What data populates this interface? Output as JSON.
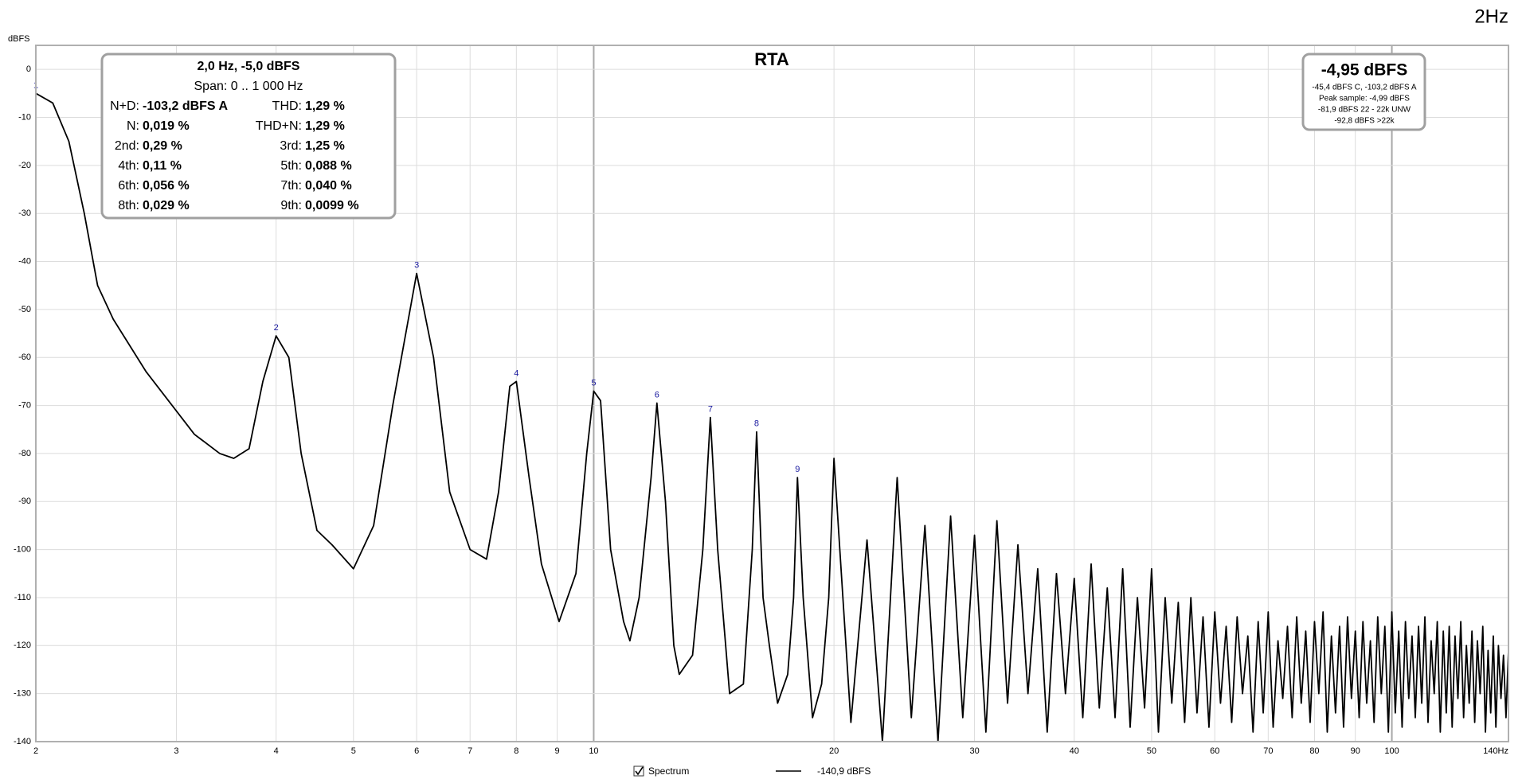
{
  "chart_data": {
    "type": "line",
    "title": "RTA",
    "y_label": "dBFS",
    "corner_label": "2Hz",
    "x_scale": "log",
    "grid": true,
    "xlim": [
      2,
      140
    ],
    "ylim": [
      -140,
      5
    ],
    "xticks": [
      2,
      3,
      4,
      5,
      6,
      7,
      8,
      9,
      10,
      20,
      30,
      40,
      50,
      60,
      70,
      80,
      90,
      100,
      {
        "value": 140,
        "label": "140Hz"
      }
    ],
    "yticks": [
      0,
      -10,
      -20,
      -30,
      -40,
      -50,
      -60,
      -70,
      -80,
      -90,
      -100,
      -110,
      -120,
      -130,
      -140
    ],
    "x": [
      2,
      2.1,
      2.2,
      2.3,
      2.39,
      2.5,
      2.75,
      3.16,
      3.4,
      3.54,
      3.7,
      3.85,
      4,
      4.15,
      4.3,
      4.5,
      4.7,
      5,
      5.3,
      5.6,
      6,
      6.3,
      6.6,
      7,
      7.34,
      7.6,
      7.85,
      8,
      8.3,
      8.6,
      9.05,
      9.5,
      9.8,
      10,
      10.2,
      10.5,
      10.9,
      11.1,
      11.4,
      11.8,
      12,
      12.3,
      12.6,
      12.8,
      13.3,
      13.7,
      14,
      14.3,
      14.6,
      14.8,
      15.4,
      15.8,
      16,
      16.3,
      16.6,
      17,
      17.5,
      17.8,
      18,
      18.3,
      18.8,
      19.3,
      19.7,
      20,
      21,
      22,
      23,
      24,
      25,
      26,
      27,
      28,
      29,
      30,
      31,
      32,
      33,
      34,
      35,
      36,
      37,
      38,
      39,
      40,
      41,
      42,
      43,
      44,
      45,
      46,
      47,
      48,
      49,
      50,
      51,
      52,
      53,
      54,
      55,
      56,
      57,
      58,
      59,
      60,
      61,
      62,
      63,
      64,
      65,
      66,
      67,
      68,
      69,
      70,
      71,
      72,
      73,
      74,
      75,
      76,
      77,
      78,
      79,
      80,
      81,
      82,
      83,
      84,
      85,
      86,
      87,
      88,
      89,
      90,
      91,
      92,
      93,
      94,
      95,
      96,
      97,
      98,
      99,
      100,
      101,
      102,
      103,
      104,
      105,
      106,
      107,
      108,
      109,
      110,
      111,
      112,
      113,
      114,
      115,
      116,
      117,
      118,
      119,
      120,
      121,
      122,
      123,
      124,
      125,
      126,
      127,
      128,
      129,
      130,
      131,
      132,
      133,
      134,
      135,
      136,
      137,
      138,
      139,
      140
    ],
    "series": [
      {
        "name": "Spectrum",
        "color": "#000000",
        "values": [
          -5,
          -7,
          -15,
          -30,
          -45,
          -52,
          -63,
          -76,
          -80,
          -81,
          -79,
          -65,
          -55.5,
          -60,
          -80,
          -96,
          -99,
          -104,
          -95,
          -70,
          -42.5,
          -60,
          -88,
          -100,
          -102,
          -88,
          -66,
          -65,
          -85,
          -103,
          -115,
          -105,
          -80,
          -67,
          -69,
          -100,
          -115,
          -119,
          -110,
          -85,
          -69.5,
          -90,
          -120,
          -126,
          -122,
          -100,
          -72.5,
          -100,
          -118,
          -130,
          -128,
          -100,
          -75.5,
          -110,
          -120,
          -132,
          -126,
          -110,
          -85,
          -110,
          -135,
          -128,
          -110,
          -81,
          -136,
          -98,
          -140,
          -85,
          -135,
          -95,
          -140,
          -93,
          -135,
          -97,
          -138,
          -94,
          -132,
          -99,
          -130,
          -104,
          -138,
          -105,
          -130,
          -106,
          -135,
          -103,
          -133,
          -108,
          -135,
          -104,
          -137,
          -110,
          -133,
          -104,
          -138,
          -110,
          -132,
          -111,
          -136,
          -110,
          -134,
          -114,
          -137,
          -113,
          -132,
          -116,
          -136,
          -114,
          -130,
          -118,
          -138,
          -115,
          -134,
          -113,
          -137,
          -119,
          -131,
          -116,
          -135,
          -114,
          -132,
          -117,
          -136,
          -115,
          -130,
          -113,
          -138,
          -118,
          -134,
          -116,
          -137,
          -114,
          -131,
          -117,
          -135,
          -115,
          -132,
          -119,
          -136,
          -114,
          -130,
          -116,
          -138,
          -113,
          -134,
          -117,
          -137,
          -115,
          -131,
          -118,
          -135,
          -116,
          -132,
          -114,
          -136,
          -119,
          -130,
          -115,
          -138,
          -117,
          -134,
          -116,
          -137,
          -118,
          -131,
          -115,
          -135,
          -120,
          -132,
          -117,
          -136,
          -119,
          -130,
          -116,
          -138,
          -121,
          -134,
          -118,
          -137,
          -120,
          -131,
          -122,
          -135,
          -121
        ]
      }
    ],
    "markers": [
      {
        "label": "1",
        "x": 2,
        "y": -5
      },
      {
        "label": "2",
        "x": 4,
        "y": -55.5
      },
      {
        "label": "3",
        "x": 6,
        "y": -42.5
      },
      {
        "label": "4",
        "x": 8,
        "y": -65
      },
      {
        "label": "5",
        "x": 10,
        "y": -67
      },
      {
        "label": "6",
        "x": 12,
        "y": -69.5
      },
      {
        "label": "7",
        "x": 14,
        "y": -72.5
      },
      {
        "label": "8",
        "x": 16,
        "y": -75.5
      },
      {
        "label": "9",
        "x": 18,
        "y": -85
      }
    ],
    "cursor_readout": "-140,9 dBFS"
  },
  "info_box": {
    "title": "2,0 Hz, -5,0 dBFS",
    "span": "Span: 0 .. 1 000 Hz",
    "rows": [
      [
        "N+D:",
        "-103,2 dBFS A",
        "THD:",
        "1,29 %"
      ],
      [
        "N:",
        "0,019 %",
        "THD+N:",
        "1,29 %"
      ],
      [
        "2nd:",
        "0,29 %",
        "3rd:",
        "1,25 %"
      ],
      [
        "4th:",
        "0,11 %",
        "5th:",
        "0,088 %"
      ],
      [
        "6th:",
        "0,056 %",
        "7th:",
        "0,040 %"
      ],
      [
        "8th:",
        "0,029 %",
        "9th:",
        "0,0099 %"
      ]
    ]
  },
  "level_box": {
    "title": "-4,95 dBFS",
    "lines": [
      "-45,4 dBFS C, -103,2 dBFS A",
      "Peak sample: -4,99 dBFS",
      "-81,9 dBFS 22 - 22k UNW",
      "-92,8 dBFS >22k"
    ]
  }
}
